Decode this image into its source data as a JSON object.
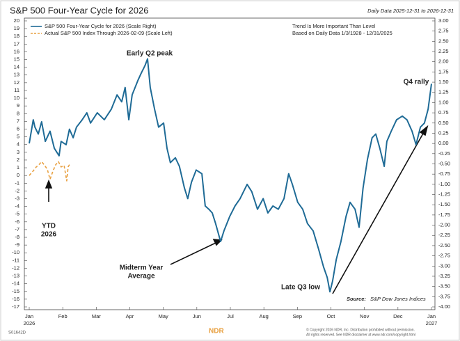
{
  "chart_data": {
    "type": "line",
    "title": "S&P 500 Four-Year Cycle for 2026",
    "subtitle": "Daily Data 2025-12-31 to 2026-12-31",
    "notes": [
      "Trend Is More Important Than Level",
      "Based on Daily Data 1/3/1928 - 12/31/2025"
    ],
    "annotations": [
      [
        "Early Q2 peak"
      ],
      [
        "Q4 rally"
      ],
      [
        "Midterm Year",
        "Average"
      ],
      [
        "Late Q3 low"
      ],
      [
        "YTD",
        "2026"
      ]
    ],
    "source_label": "Source:",
    "source": "S&P Dow Jones Indices",
    "code": "S01642D",
    "copyright": [
      "© Copyright 2026 NDR, Inc. Distribution prohibited without permission.",
      "All rights reserved. See NDR disclaimer at www.ndr.com/copyright.html"
    ],
    "logo": "NDR",
    "xlim": [
      0,
      12
    ],
    "xticks": [
      {
        "value": 0,
        "label": "Jan"
      },
      {
        "value": 1,
        "label": "Feb"
      },
      {
        "value": 2,
        "label": "Mar"
      },
      {
        "value": 3,
        "label": "Apr"
      },
      {
        "value": 4,
        "label": "May"
      },
      {
        "value": 5,
        "label": "Jun"
      },
      {
        "value": 6,
        "label": "Jul"
      },
      {
        "value": 7,
        "label": "Aug"
      },
      {
        "value": 8,
        "label": "Sep"
      },
      {
        "value": 9,
        "label": "Oct"
      },
      {
        "value": 10,
        "label": "Nov"
      },
      {
        "value": 11,
        "label": "Dec"
      },
      {
        "value": 12,
        "label": "Jan"
      }
    ],
    "x_year_labels": [
      "2026",
      "2027"
    ],
    "ylim": [
      -17,
      20
    ],
    "yticks": [
      -17,
      -16,
      -15,
      -14,
      -13,
      -12,
      -11,
      -10,
      -9,
      -8,
      -7,
      -6,
      -5,
      -4,
      -3,
      -2,
      -1,
      0,
      1,
      2,
      3,
      4,
      5,
      6,
      7,
      8,
      9,
      10,
      11,
      12,
      13,
      14,
      15,
      16,
      17,
      18,
      19,
      20
    ],
    "y2lim": [
      -4,
      3
    ],
    "y2ticks": [
      {
        "value": -4,
        "label": "-4.00"
      },
      {
        "value": -3.75,
        "label": "-3.75"
      },
      {
        "value": -3.5,
        "label": "-3.50"
      },
      {
        "value": -3.25,
        "label": "-3.25"
      },
      {
        "value": -3,
        "label": "-3.00"
      },
      {
        "value": -2.75,
        "label": "-2.75"
      },
      {
        "value": -2.5,
        "label": "-2.50"
      },
      {
        "value": -2.25,
        "label": "-2.25"
      },
      {
        "value": -2,
        "label": "-2.00"
      },
      {
        "value": -1.75,
        "label": "-1.75"
      },
      {
        "value": -1.5,
        "label": "-1.50"
      },
      {
        "value": -1.25,
        "label": "-1.25"
      },
      {
        "value": -1,
        "label": "-1.00"
      },
      {
        "value": -0.75,
        "label": "-0.75"
      },
      {
        "value": -0.5,
        "label": "-0.50"
      },
      {
        "value": -0.25,
        "label": "-0.25"
      },
      {
        "value": 0,
        "label": "0.00"
      },
      {
        "value": 0.25,
        "label": "0.25"
      },
      {
        "value": 0.5,
        "label": "0.50"
      },
      {
        "value": 0.75,
        "label": "0.75"
      },
      {
        "value": 1,
        "label": "1.00"
      },
      {
        "value": 1.25,
        "label": "1.25"
      },
      {
        "value": 1.5,
        "label": "1.50"
      },
      {
        "value": 1.75,
        "label": "1.75"
      },
      {
        "value": 2,
        "label": "2.00"
      },
      {
        "value": 2.25,
        "label": "2.25"
      },
      {
        "value": 2.5,
        "label": "2.50"
      },
      {
        "value": 2.75,
        "label": "2.75"
      },
      {
        "value": 3,
        "label": "3.00"
      }
    ],
    "grid": false,
    "legend": "upper left",
    "series": [
      {
        "name": "S&P 500 Four-Year Cycle for 2026 (Scale Right)",
        "color": "#1f6b96",
        "linestyle": "solid",
        "axis": "y2",
        "x": [
          0,
          0.12,
          0.17,
          0.27,
          0.37,
          0.48,
          0.62,
          0.75,
          0.89,
          0.95,
          1.1,
          1.2,
          1.31,
          1.41,
          1.58,
          1.72,
          1.83,
          2.03,
          2.24,
          2.45,
          2.62,
          2.76,
          2.86,
          2.97,
          3.07,
          3.24,
          3.34,
          3.45,
          3.53,
          3.61,
          3.74,
          3.86,
          4.01,
          4.11,
          4.21,
          4.36,
          4.48,
          4.63,
          4.73,
          4.84,
          4.98,
          5.15,
          5.25,
          5.36,
          5.46,
          5.56,
          5.71,
          5.81,
          5.98,
          6.14,
          6.29,
          6.5,
          6.64,
          6.81,
          6.98,
          7.12,
          7.27,
          7.43,
          7.6,
          7.74,
          7.85,
          8.01,
          8.16,
          8.3,
          8.47,
          8.63,
          8.78,
          8.89,
          8.97,
          9.05,
          9.16,
          9.3,
          9.45,
          9.57,
          9.72,
          9.84,
          9.96,
          10.09,
          10.23,
          10.34,
          10.46,
          10.59,
          10.67,
          10.8,
          10.96,
          11.13,
          11.27,
          11.42,
          11.54,
          11.67,
          11.79,
          11.9,
          12.0
        ],
        "values": [
          0,
          0.58,
          0.4,
          0.23,
          0.53,
          0.05,
          0.3,
          -0.12,
          -0.3,
          0.05,
          -0.03,
          0.35,
          0.14,
          0.4,
          0.58,
          0.75,
          0.5,
          0.75,
          0.58,
          0.84,
          1.19,
          1.02,
          1.37,
          0.58,
          1.19,
          1.54,
          1.72,
          1.9,
          2.07,
          1.37,
          0.84,
          0.4,
          0.5,
          -0.12,
          -0.47,
          -0.35,
          -0.56,
          -1.09,
          -1.35,
          -0.95,
          -0.65,
          -0.74,
          -1.53,
          -1.61,
          -1.7,
          -1.96,
          -2.4,
          -2.14,
          -1.79,
          -1.53,
          -1.35,
          -1.0,
          -1.18,
          -1.61,
          -1.35,
          -1.7,
          -1.53,
          -1.61,
          -1.35,
          -0.74,
          -1.0,
          -1.44,
          -1.61,
          -1.96,
          -2.14,
          -2.58,
          -3.02,
          -3.28,
          -3.63,
          -3.37,
          -2.84,
          -2.4,
          -1.79,
          -1.44,
          -1.61,
          -2.05,
          -1.09,
          -0.39,
          0.14,
          0.23,
          -0.12,
          -0.56,
          0.05,
          0.3,
          0.58,
          0.67,
          0.58,
          0.3,
          -0.03,
          0.4,
          0.5,
          0.84,
          1.46
        ]
      },
      {
        "name": "Actual S&P 500 Index Through 2026-02-09 (Scale Left)",
        "color": "#e8a040",
        "linestyle": "dashed",
        "x": [
          0,
          0.12,
          0.21,
          0.29,
          0.37,
          0.46,
          0.54,
          0.62,
          0.71,
          0.79,
          0.87,
          0.95,
          1.04,
          1.12,
          1.16,
          1.2
        ],
        "values": [
          0,
          0.6,
          1.1,
          1.4,
          1.8,
          1.3,
          0.8,
          -0.5,
          0.6,
          1.4,
          1.8,
          1.1,
          1.3,
          -0.7,
          1.1,
          1.4
        ]
      }
    ]
  }
}
